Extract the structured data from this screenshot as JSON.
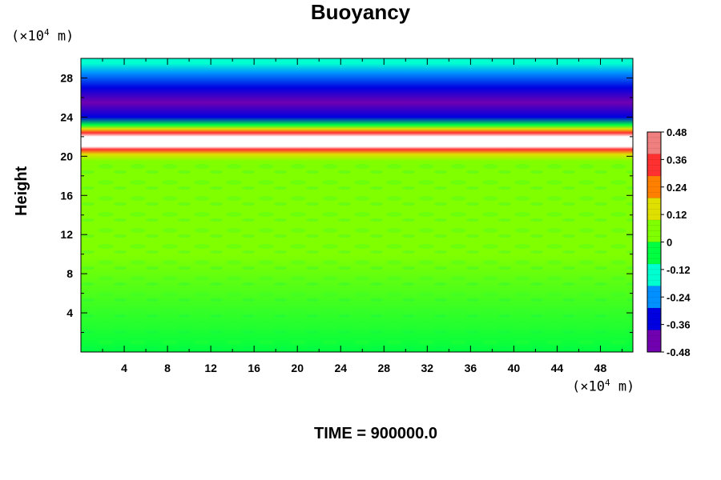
{
  "chart_data": {
    "type": "heatmap",
    "title": "Buoyancy",
    "ylabel": "Height",
    "x_unit_prefix": "(×10",
    "x_unit_exp": "4",
    "x_unit_suffix": " m)",
    "y_unit_prefix": "(×10",
    "y_unit_exp": "4",
    "y_unit_suffix": " m)",
    "xlim": [
      0,
      51
    ],
    "ylim": [
      0,
      30
    ],
    "x_ticks": [
      4,
      8,
      12,
      16,
      20,
      24,
      28,
      32,
      36,
      40,
      44,
      48
    ],
    "y_ticks": [
      4,
      8,
      12,
      16,
      20,
      24,
      28
    ],
    "colorbar": {
      "range": [
        -0.48,
        0.48
      ],
      "tick_labels": [
        "0.48",
        "0.36",
        "0.24",
        "0.12",
        "0",
        "-0.12",
        "-0.24",
        "-0.36",
        "-0.48"
      ],
      "tick_values": [
        0.48,
        0.36,
        0.24,
        0.12,
        0,
        -0.12,
        -0.24,
        -0.36,
        -0.48
      ],
      "colors": [
        "#f08080",
        "#ff3030",
        "#ff8000",
        "#e0e000",
        "#80ff00",
        "#00ff40",
        "#00ffd0",
        "#0090ff",
        "#0000e0",
        "#7000b0"
      ]
    },
    "vertical_profile": [
      {
        "y": 0,
        "value": 0.0
      },
      {
        "y": 10,
        "value": 0.02
      },
      {
        "y": 11,
        "value": 0.07
      },
      {
        "y": 12,
        "value": 0.02
      },
      {
        "y": 19.5,
        "value": 0.02
      },
      {
        "y": 20.2,
        "value": 0.1
      },
      {
        "y": 20.7,
        "value": 0.36
      },
      {
        "y": 21.0,
        "value": 0.6
      },
      {
        "y": 22.0,
        "value": 0.6
      },
      {
        "y": 22.4,
        "value": 0.36
      },
      {
        "y": 22.8,
        "value": 0.12
      },
      {
        "y": 23.2,
        "value": -0.08
      },
      {
        "y": 24.0,
        "value": -0.3
      },
      {
        "y": 25.5,
        "value": -0.42
      },
      {
        "y": 27.0,
        "value": -0.36
      },
      {
        "y": 28.5,
        "value": -0.24
      },
      {
        "y": 29.5,
        "value": -0.12
      },
      {
        "y": 30,
        "value": -0.12
      }
    ]
  },
  "time_label": "TIME = 900000.0"
}
